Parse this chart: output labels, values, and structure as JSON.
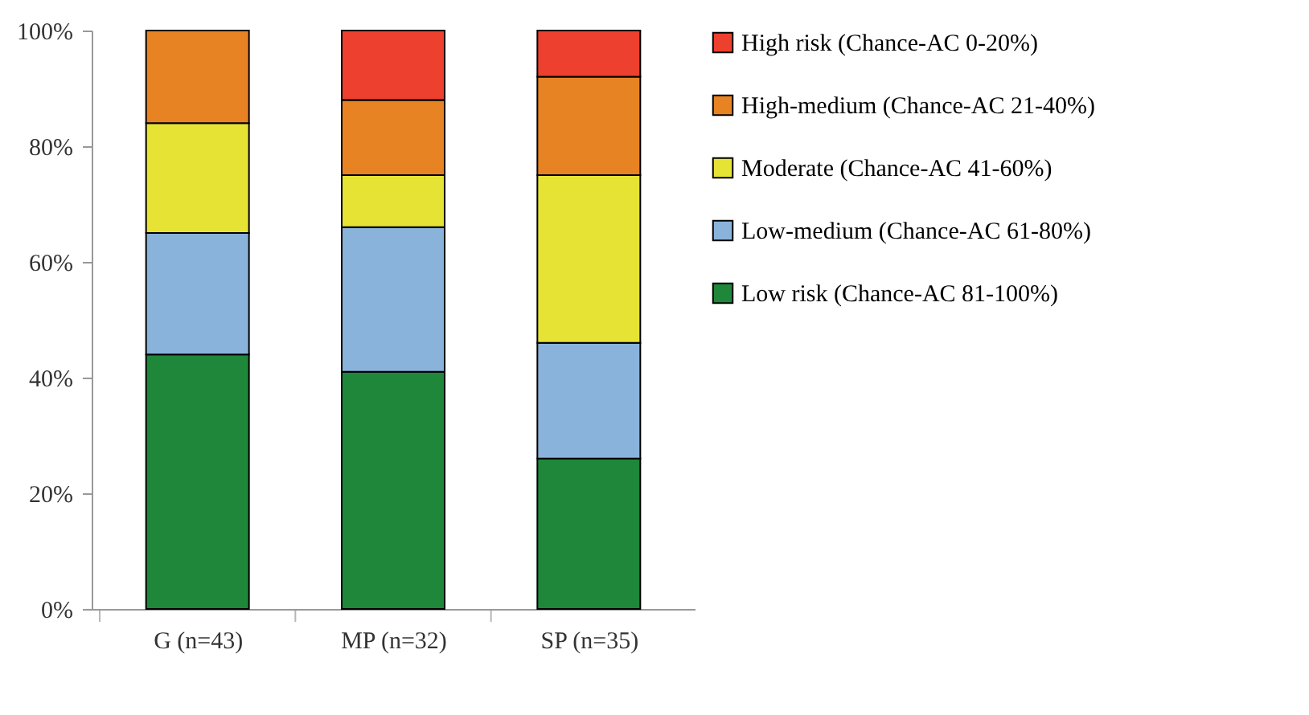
{
  "chart_data": {
    "type": "bar",
    "stacked": true,
    "categories": [
      "G (n=43)",
      "MP (n=32)",
      "SP (n=35)"
    ],
    "series": [
      {
        "name": "Low risk (Chance-AC 81-100%)",
        "color": "#1e873a",
        "values": [
          44,
          41,
          26
        ]
      },
      {
        "name": "Low-medium (Chance-AC 61-80%)",
        "color": "#8ab3dc",
        "values": [
          21,
          25,
          20
        ]
      },
      {
        "name": "Moderate (Chance-AC 41-60%)",
        "color": "#e6e335",
        "values": [
          19,
          9,
          29
        ]
      },
      {
        "name": "High-medium (Chance-AC 21-40%)",
        "color": "#e88323",
        "values": [
          16,
          13,
          17
        ]
      },
      {
        "name": "High risk (Chance-AC 0-20%)",
        "color": "#ee402e",
        "values": [
          0,
          12,
          8
        ]
      }
    ],
    "ylim": [
      0,
      100
    ],
    "yticks": [
      {
        "value": 0,
        "label": "0%"
      },
      {
        "value": 20,
        "label": "20%"
      },
      {
        "value": 40,
        "label": "40%"
      },
      {
        "value": 60,
        "label": "60%"
      },
      {
        "value": 80,
        "label": "80%"
      },
      {
        "value": 100,
        "label": "100%"
      }
    ],
    "grid": false,
    "legend": "right"
  }
}
